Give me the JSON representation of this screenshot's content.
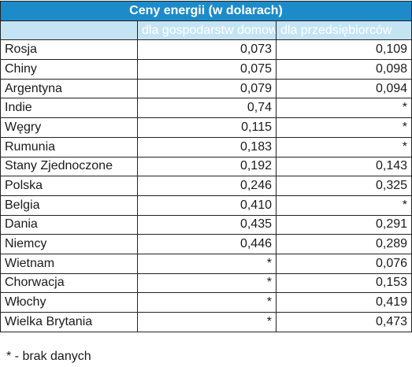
{
  "table": {
    "title": "Ceny energii (w dolarach)",
    "headers": {
      "country": "",
      "households": "dla gospodarstw domowych",
      "business": "dla przedsiębiorców"
    },
    "rows": [
      {
        "country": "Rosja",
        "households": "0,073",
        "business": "0,109"
      },
      {
        "country": "Chiny",
        "households": "0,075",
        "business": "0,098"
      },
      {
        "country": "Argentyna",
        "households": "0,079",
        "business": "0,094"
      },
      {
        "country": "Indie",
        "households": "0,74",
        "business": "*"
      },
      {
        "country": "Węgry",
        "households": "0,115",
        "business": "*"
      },
      {
        "country": "Rumunia",
        "households": "0,183",
        "business": "*"
      },
      {
        "country": "Stany Zjednoczone",
        "households": "0,192",
        "business": "0,143"
      },
      {
        "country": "Polska",
        "households": "0,246",
        "business": "0,325"
      },
      {
        "country": "Belgia",
        "households": "0,410",
        "business": "*"
      },
      {
        "country": "Dania",
        "households": "0,435",
        "business": "0,291"
      },
      {
        "country": "Niemcy",
        "households": "0,446",
        "business": "0,289"
      },
      {
        "country": "Wietnam",
        "households": "*",
        "business": "0,076"
      },
      {
        "country": "Chorwacja",
        "households": "*",
        "business": "0,153"
      },
      {
        "country": "Włochy",
        "households": "*",
        "business": "0,419"
      },
      {
        "country": "Wielka Brytania",
        "households": "*",
        "business": "0,473"
      }
    ]
  },
  "footnote": "* - brak danych",
  "colors": {
    "title_bg": "#1d8bc9",
    "header_bg": "#c4e4f4",
    "border": "#222222"
  }
}
